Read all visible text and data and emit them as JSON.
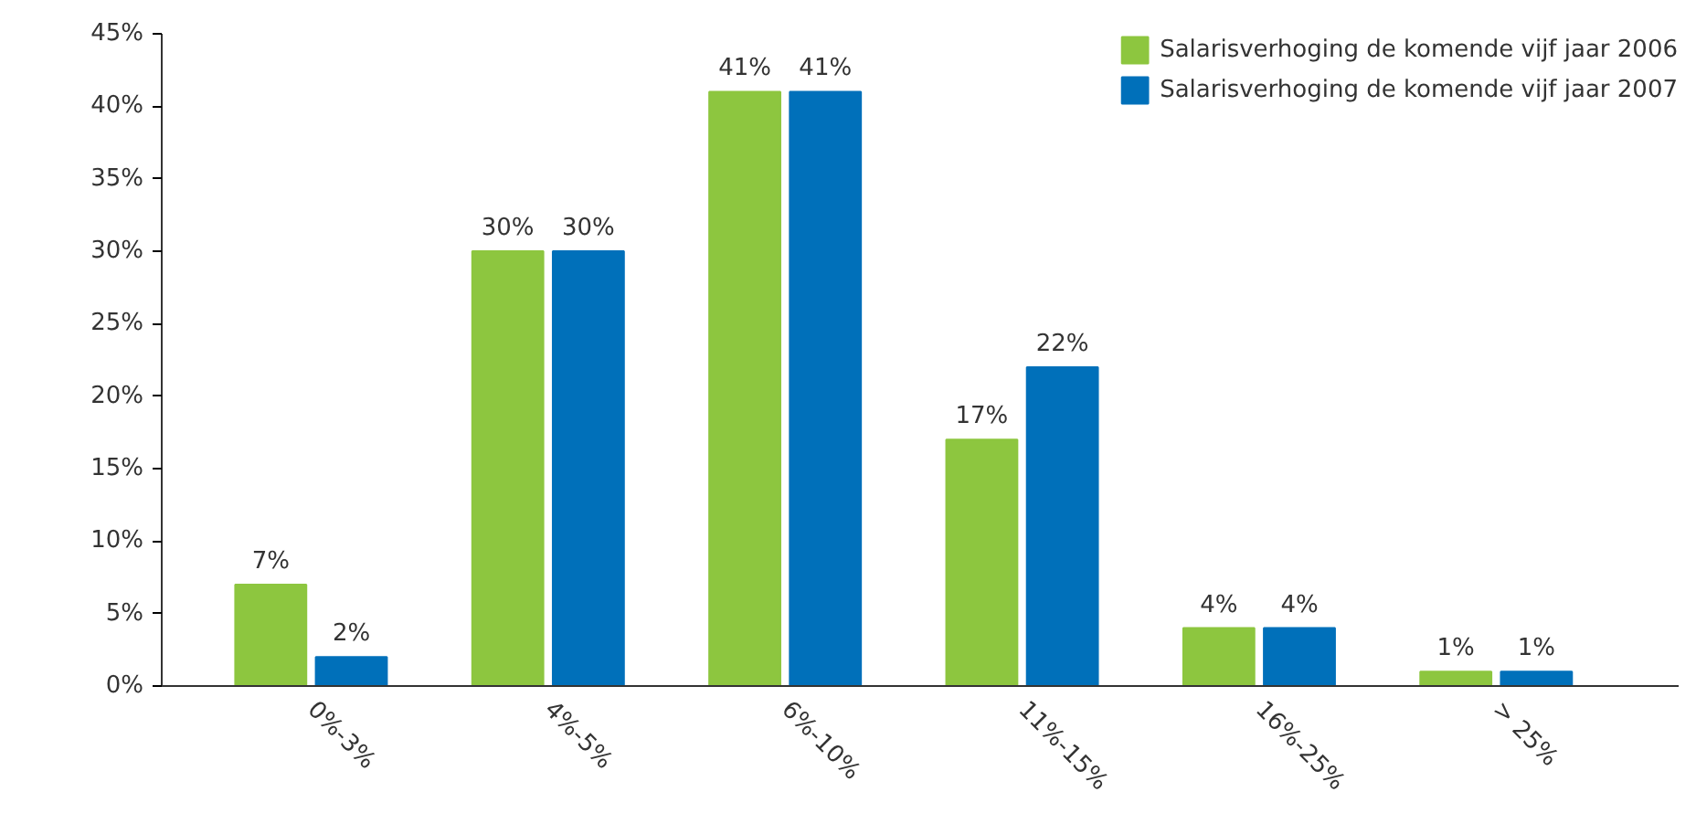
{
  "chart_data": {
    "type": "bar",
    "categories": [
      "0%-3%",
      "4%-5%",
      "6%-10%",
      "11%-15%",
      "16%-25%",
      "> 25%"
    ],
    "series": [
      {
        "name": "Salarisverhoging de komende vijf jaar 2006",
        "color": "#8dc63f",
        "values": [
          7,
          30,
          41,
          17,
          4,
          1
        ],
        "value_labels": [
          "7%",
          "30%",
          "41%",
          "17%",
          "4%",
          "1%"
        ]
      },
      {
        "name": "Salarisverhoging de komende vijf jaar 2007",
        "color": "#0070ba",
        "values": [
          2,
          30,
          41,
          22,
          4,
          1
        ],
        "value_labels": [
          "2%",
          "30%",
          "41%",
          "22%",
          "4%",
          "1%"
        ]
      }
    ],
    "ylim": [
      0,
      45
    ],
    "yticks": [
      {
        "value": 0,
        "label": "0%"
      },
      {
        "value": 5,
        "label": "5%"
      },
      {
        "value": 10,
        "label": "10%"
      },
      {
        "value": 15,
        "label": "15%"
      },
      {
        "value": 20,
        "label": "20%"
      },
      {
        "value": 25,
        "label": "25%"
      },
      {
        "value": 30,
        "label": "30%"
      },
      {
        "value": 35,
        "label": "35%"
      },
      {
        "value": 40,
        "label": "40%"
      },
      {
        "value": 45,
        "label": "45%"
      }
    ],
    "grid": false,
    "legend": "top right"
  }
}
